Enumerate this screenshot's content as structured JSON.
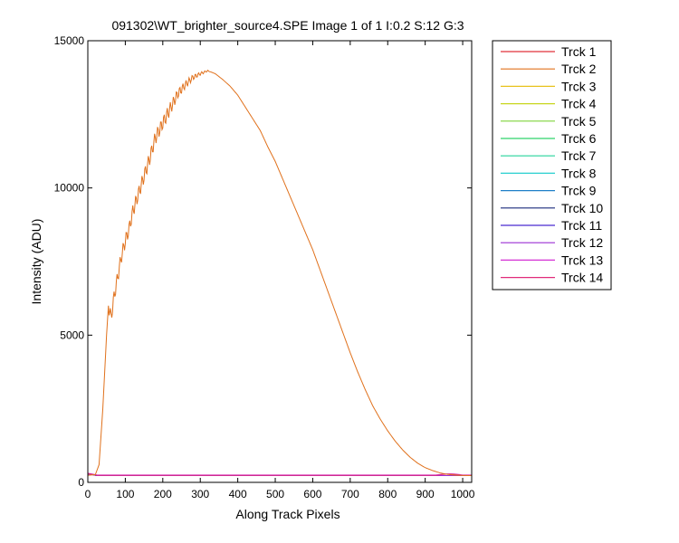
{
  "chart_data": {
    "type": "line",
    "title": "091302\\WT_brighter_source4.SPE  Image 1 of 1  I:0.2  S:12  G:3",
    "xlabel": "Along Track Pixels",
    "ylabel": "Intensity (ADU)",
    "xlim": [
      0,
      1024
    ],
    "ylim": [
      0,
      15000
    ],
    "xticks": [
      0,
      100,
      200,
      300,
      400,
      500,
      600,
      700,
      800,
      900,
      1000
    ],
    "yticks": [
      0,
      5000,
      10000,
      15000
    ],
    "grid": false,
    "legend_position": "outside-right",
    "series": [
      {
        "name": "Trck 1",
        "color": "#e0303a",
        "baseline": 230
      },
      {
        "name": "Trck 2",
        "color": "#e0711c",
        "points": [
          [
            0,
            240
          ],
          [
            20,
            260
          ],
          [
            30,
            600
          ],
          [
            40,
            2500
          ],
          [
            50,
            5000
          ],
          [
            55,
            6000
          ],
          [
            62,
            5600
          ],
          [
            70,
            6300
          ],
          [
            80,
            7000
          ],
          [
            90,
            7700
          ],
          [
            100,
            8200
          ],
          [
            110,
            8600
          ],
          [
            120,
            9200
          ],
          [
            135,
            9800
          ],
          [
            150,
            10400
          ],
          [
            165,
            11000
          ],
          [
            180,
            11700
          ],
          [
            200,
            12200
          ],
          [
            220,
            12700
          ],
          [
            240,
            13200
          ],
          [
            260,
            13500
          ],
          [
            280,
            13750
          ],
          [
            300,
            13880
          ],
          [
            320,
            13980
          ],
          [
            340,
            13880
          ],
          [
            360,
            13680
          ],
          [
            380,
            13450
          ],
          [
            400,
            13150
          ],
          [
            420,
            12750
          ],
          [
            440,
            12350
          ],
          [
            460,
            11950
          ],
          [
            480,
            11400
          ],
          [
            500,
            10900
          ],
          [
            520,
            10300
          ],
          [
            540,
            9700
          ],
          [
            560,
            9100
          ],
          [
            580,
            8500
          ],
          [
            600,
            7900
          ],
          [
            620,
            7200
          ],
          [
            640,
            6500
          ],
          [
            660,
            5800
          ],
          [
            680,
            5100
          ],
          [
            700,
            4400
          ],
          [
            720,
            3750
          ],
          [
            740,
            3150
          ],
          [
            760,
            2600
          ],
          [
            780,
            2150
          ],
          [
            800,
            1750
          ],
          [
            820,
            1400
          ],
          [
            840,
            1100
          ],
          [
            860,
            850
          ],
          [
            880,
            650
          ],
          [
            900,
            500
          ],
          [
            920,
            400
          ],
          [
            940,
            320
          ],
          [
            960,
            270
          ],
          [
            980,
            245
          ],
          [
            1000,
            235
          ],
          [
            1024,
            230
          ]
        ]
      },
      {
        "name": "Trck 3",
        "color": "#e8c21c",
        "baseline": 230
      },
      {
        "name": "Trck 4",
        "color": "#c8d61e",
        "baseline": 230
      },
      {
        "name": "Trck 5",
        "color": "#7fd43a",
        "baseline": 230
      },
      {
        "name": "Trck 6",
        "color": "#2fd46a",
        "baseline": 230
      },
      {
        "name": "Trck 7",
        "color": "#25d49a",
        "baseline": 230
      },
      {
        "name": "Trck 8",
        "color": "#27cfcf",
        "baseline": 230
      },
      {
        "name": "Trck 9",
        "color": "#1f7fc8",
        "baseline": 230
      },
      {
        "name": "Trck 10",
        "color": "#1a2a7c",
        "baseline": 230
      },
      {
        "name": "Trck 11",
        "color": "#4b2ad0",
        "baseline": 230
      },
      {
        "name": "Trck 12",
        "color": "#9b2fd4",
        "baseline": 230
      },
      {
        "name": "Trck 13",
        "color": "#d42fd4",
        "baseline": 250
      },
      {
        "name": "Trck 14",
        "color": "#e02a7a",
        "baseline": 240
      }
    ]
  }
}
